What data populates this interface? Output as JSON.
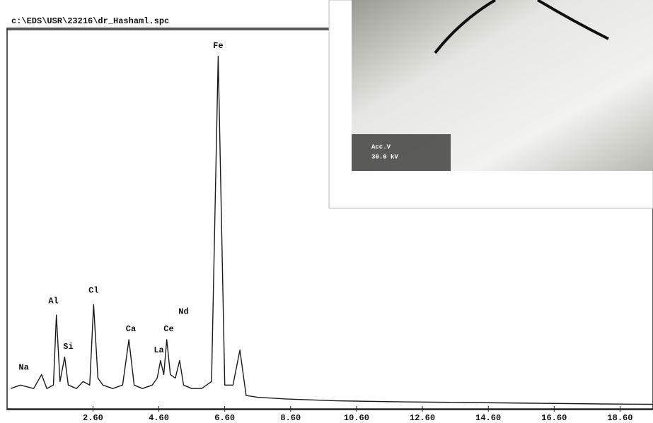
{
  "chart_data": {
    "type": "line",
    "title": "c:\\EDS\\USR\\23216\\dr_Hashaml.spc",
    "color": "#1a1a1a",
    "x": [
      0.1,
      0.4,
      0.8,
      1.04,
      1.2,
      1.4,
      1.49,
      1.6,
      1.74,
      1.85,
      2.1,
      2.3,
      2.5,
      2.62,
      2.75,
      2.9,
      3.2,
      3.5,
      3.69,
      3.85,
      4.1,
      4.4,
      4.55,
      4.65,
      4.75,
      4.84,
      4.95,
      5.1,
      5.23,
      5.35,
      5.6,
      5.9,
      6.2,
      6.4,
      6.6,
      6.85,
      7.06,
      7.25,
      7.6,
      8.5,
      10,
      12,
      14,
      16,
      18,
      19.6
    ],
    "values": [
      5,
      6,
      5,
      9,
      5,
      6,
      26,
      7,
      14,
      6,
      5,
      7,
      6,
      29,
      8,
      6,
      5,
      6,
      19,
      6,
      5,
      6,
      8,
      13,
      9,
      19,
      9,
      8,
      13,
      6,
      5,
      5,
      7,
      100,
      6,
      6,
      16,
      3,
      2.5,
      2,
      1.5,
      1.2,
      1,
      0.8,
      0.6,
      0.5
    ],
    "xlim": [
      0.1,
      19.6
    ],
    "ylim": [
      0,
      108
    ],
    "xticks": [
      {
        "value": 2.6,
        "label": "2.60"
      },
      {
        "value": 4.6,
        "label": "4.60"
      },
      {
        "value": 6.6,
        "label": "6.60"
      },
      {
        "value": 8.6,
        "label": "8.60"
      },
      {
        "value": 10.6,
        "label": "10.60"
      },
      {
        "value": 12.6,
        "label": "12.60"
      },
      {
        "value": 14.6,
        "label": "14.60"
      },
      {
        "value": 16.6,
        "label": "16.60"
      },
      {
        "value": 18.6,
        "label": "18.60"
      }
    ],
    "annotations": [
      {
        "text": "Na",
        "x": 0.5,
        "y": 11
      },
      {
        "text": "Al",
        "x": 1.4,
        "y": 30
      },
      {
        "text": "Si",
        "x": 1.85,
        "y": 17
      },
      {
        "text": "Cl",
        "x": 2.62,
        "y": 33
      },
      {
        "text": "Ca",
        "x": 3.75,
        "y": 22
      },
      {
        "text": "La",
        "x": 4.6,
        "y": 16
      },
      {
        "text": "Ce",
        "x": 4.9,
        "y": 22
      },
      {
        "text": "Nd",
        "x": 5.35,
        "y": 27
      },
      {
        "text": "Fe",
        "x": 6.4,
        "y": 103
      }
    ]
  },
  "inset": {
    "labels": [
      "Acc.V",
      "30.0 kV"
    ]
  }
}
